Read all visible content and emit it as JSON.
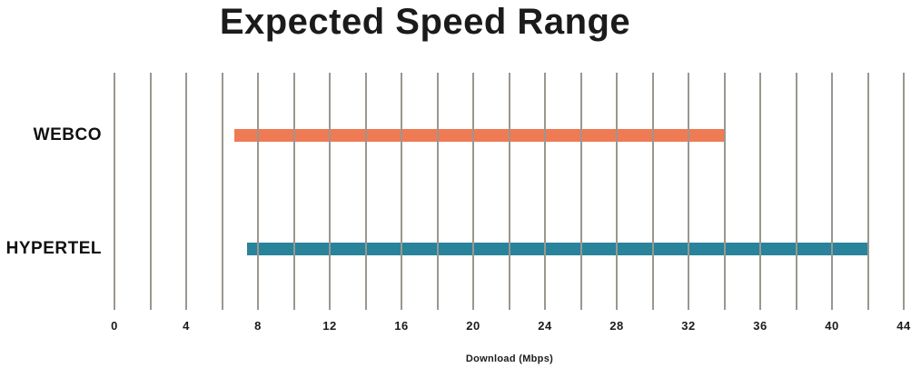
{
  "title": "Expected Speed Range",
  "chart_data": {
    "type": "bar",
    "orientation": "horizontal",
    "title": "Expected Speed Range",
    "xlabel": "Download (Mbps)",
    "ylabel": "",
    "xlim": [
      0,
      44
    ],
    "gridline_step": 2,
    "x_ticks": [
      0,
      4,
      8,
      12,
      16,
      20,
      24,
      28,
      32,
      36,
      40,
      44
    ],
    "grid_on": true,
    "legend": "none",
    "categories": [
      "WEBCO",
      "HYPERTEL"
    ],
    "series": [
      {
        "name": "WEBCO",
        "range_mbps": [
          6.7,
          34.0
        ],
        "color": "#EF7B54"
      },
      {
        "name": "HYPERTEL",
        "range_mbps": [
          7.4,
          42.0
        ],
        "color": "#28839B"
      }
    ],
    "colors": {
      "grid": "#9B968F",
      "text": "#1b1b1b",
      "background": "#ffffff"
    }
  }
}
